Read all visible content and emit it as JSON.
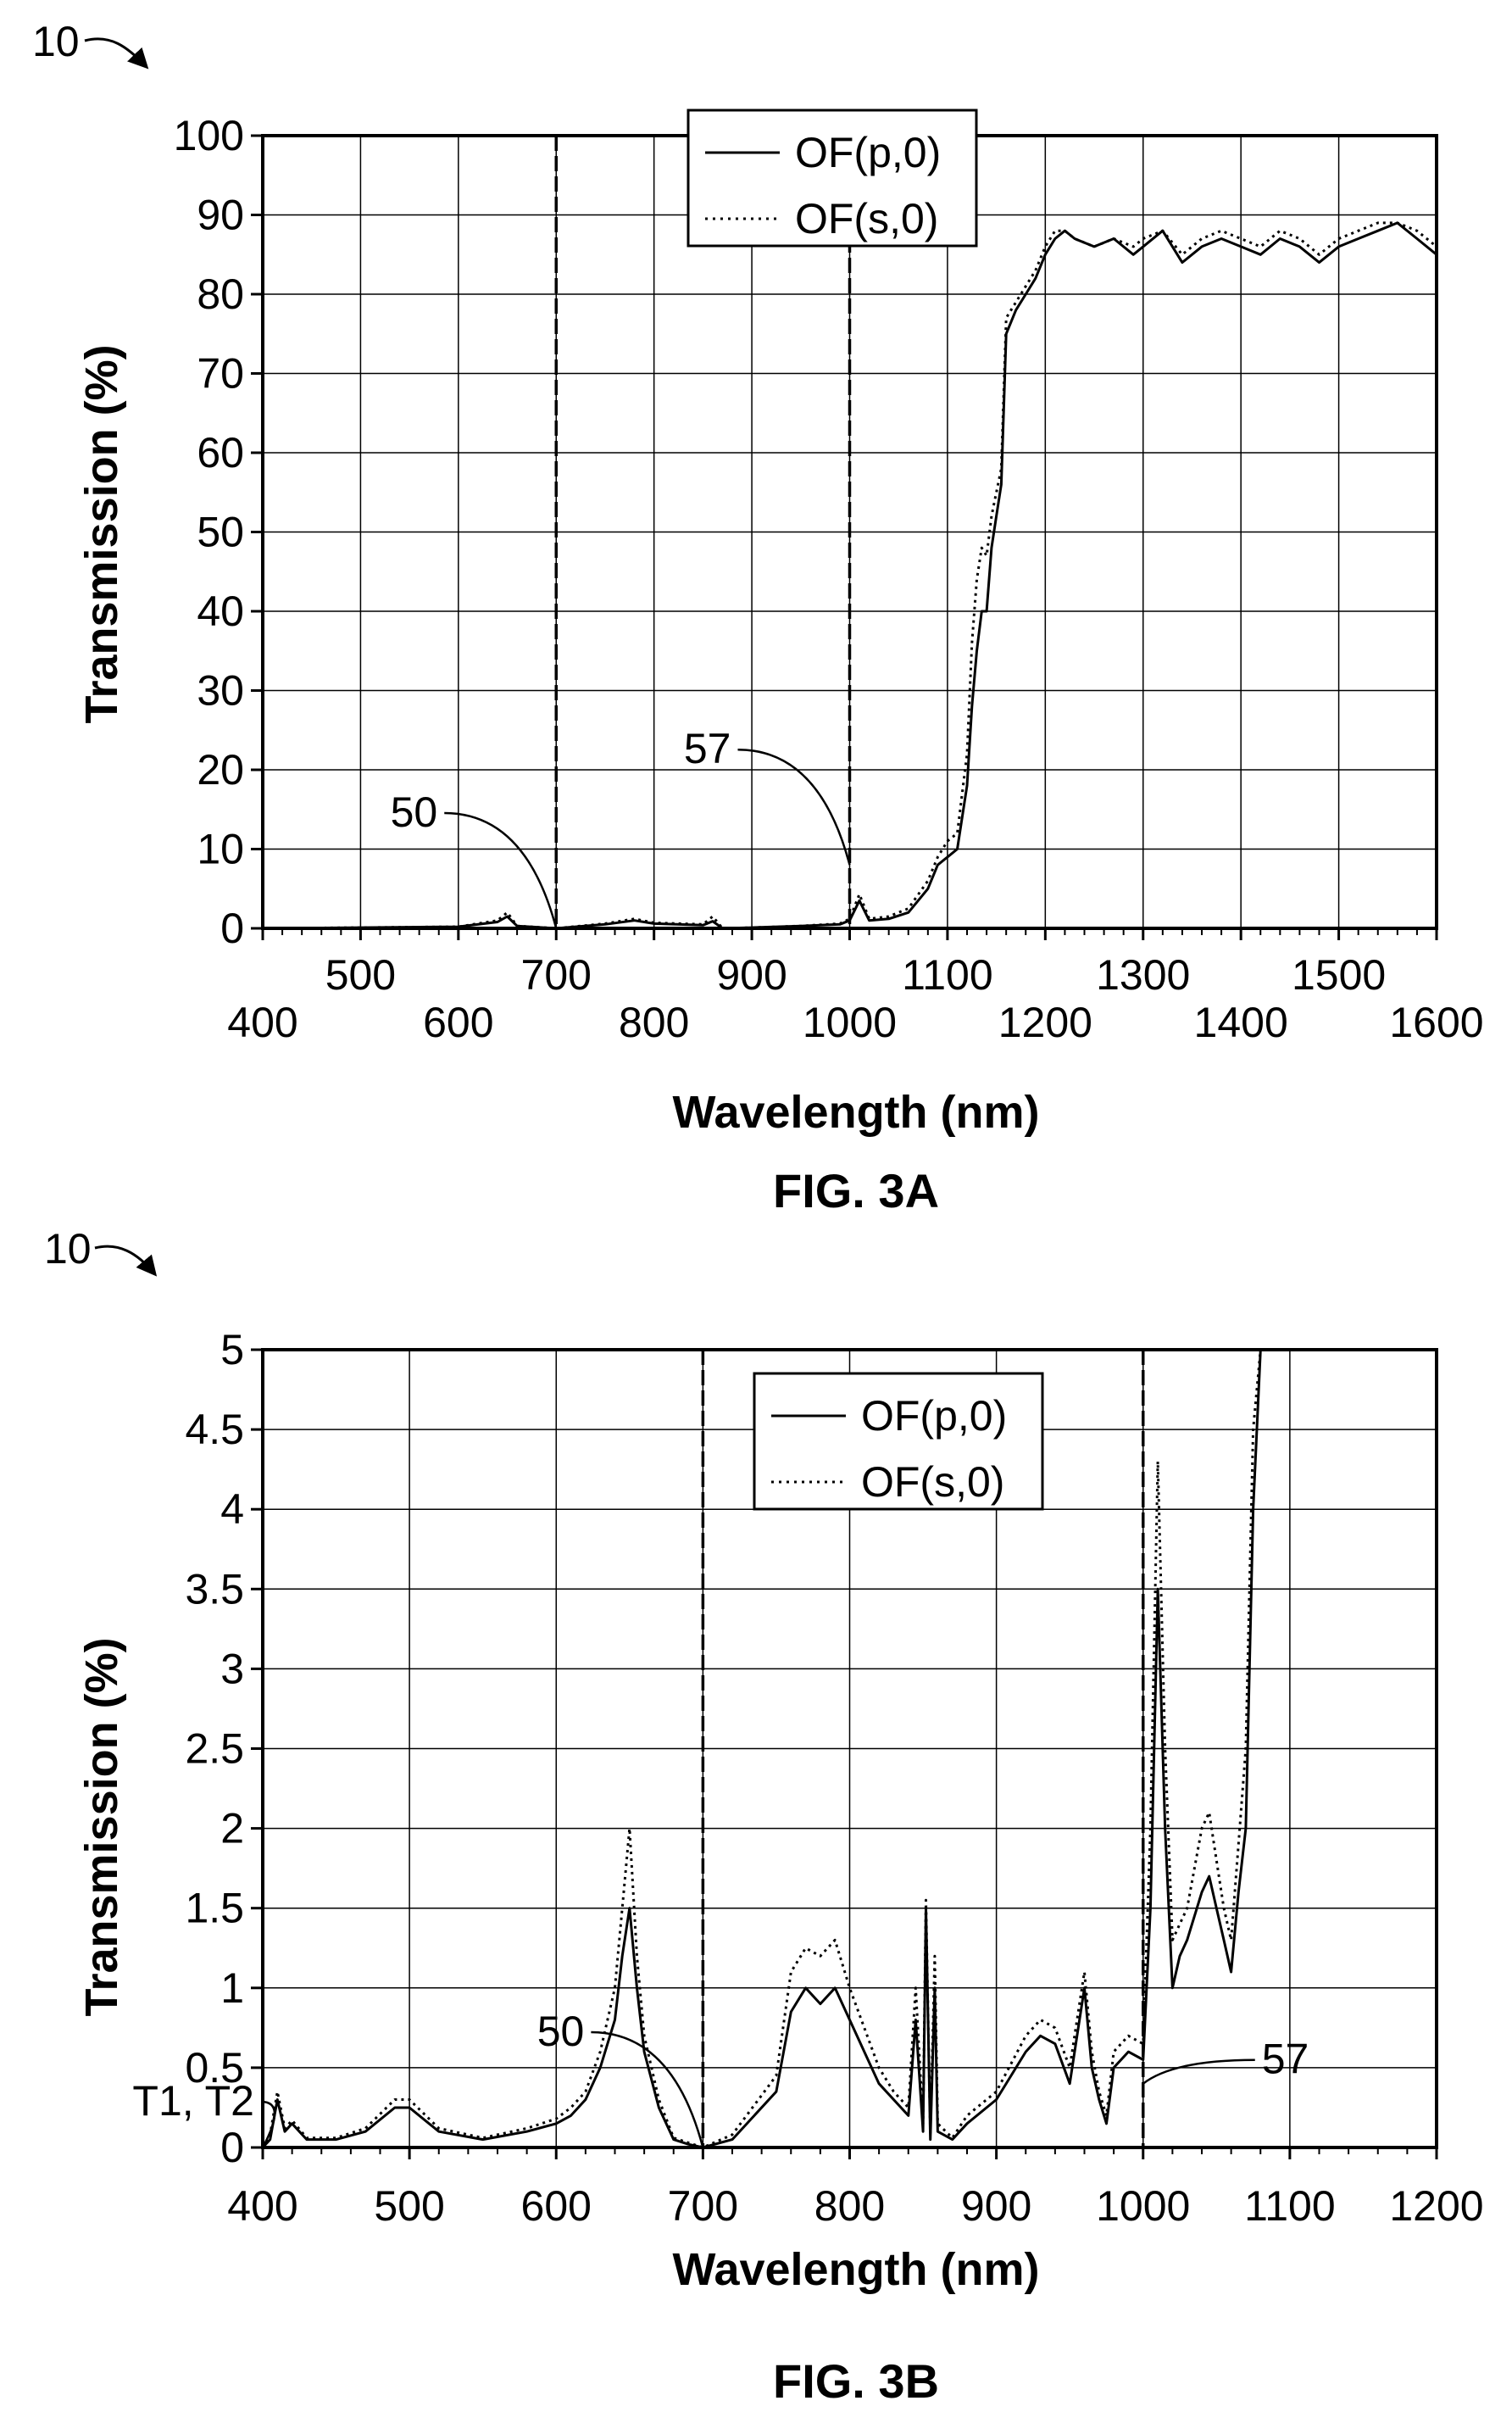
{
  "chart_data": [
    {
      "type": "line",
      "figure_label": "FIG. 3A",
      "reference_numeral": "10",
      "xlabel": "Wavelength (nm)",
      "ylabel": "Transmission (%)",
      "xlim": [
        400,
        1600
      ],
      "ylim": [
        0,
        100
      ],
      "x_ticks_low": [
        "400",
        "600",
        "800",
        "1000",
        "1200",
        "1400",
        "1600"
      ],
      "x_ticks_high": [
        "500",
        "700",
        "900",
        "1100",
        "1300",
        "1500"
      ],
      "y_ticks": [
        "0",
        "10",
        "20",
        "30",
        "40",
        "50",
        "60",
        "70",
        "80",
        "90",
        "100"
      ],
      "grid": true,
      "legend_position": "top-center",
      "vertical_markers": [
        700,
        1000
      ],
      "annotations": [
        {
          "label": "50",
          "x": 700,
          "y": 0
        },
        {
          "label": "57",
          "x": 1000,
          "y": 8
        }
      ],
      "series": [
        {
          "name": "OF(p,0)",
          "style": "solid",
          "x": [
            400,
            500,
            600,
            640,
            650,
            660,
            700,
            750,
            780,
            800,
            850,
            860,
            870,
            900,
            950,
            990,
            1000,
            1010,
            1020,
            1040,
            1060,
            1080,
            1090,
            1100,
            1110,
            1120,
            1125,
            1130,
            1135,
            1140,
            1145,
            1150,
            1155,
            1160,
            1170,
            1180,
            1190,
            1200,
            1210,
            1220,
            1230,
            1250,
            1270,
            1290,
            1300,
            1320,
            1340,
            1360,
            1380,
            1400,
            1420,
            1440,
            1460,
            1480,
            1500,
            1520,
            1540,
            1560,
            1580,
            1600
          ],
          "values": [
            0,
            0.1,
            0.2,
            0.8,
            1.5,
            0.3,
            0,
            0.5,
            1,
            0.6,
            0.4,
            0.9,
            0,
            0.1,
            0.3,
            0.5,
            1,
            3.5,
            1,
            1.2,
            2,
            5,
            8,
            9,
            10,
            18,
            28,
            35,
            40,
            40,
            48,
            52,
            56,
            75,
            78,
            80,
            82,
            85,
            87,
            88,
            87,
            86,
            87,
            85,
            86,
            88,
            84,
            86,
            87,
            86,
            85,
            87,
            86,
            84,
            86,
            87,
            88,
            89,
            87,
            85
          ]
        },
        {
          "name": "OF(s,0)",
          "style": "dotted",
          "x": [
            400,
            500,
            600,
            640,
            650,
            660,
            700,
            750,
            780,
            800,
            850,
            860,
            870,
            900,
            950,
            990,
            1000,
            1010,
            1020,
            1040,
            1060,
            1080,
            1090,
            1100,
            1110,
            1120,
            1125,
            1130,
            1135,
            1140,
            1145,
            1150,
            1155,
            1160,
            1170,
            1180,
            1190,
            1200,
            1210,
            1220,
            1230,
            1250,
            1270,
            1290,
            1300,
            1320,
            1340,
            1360,
            1380,
            1400,
            1420,
            1440,
            1460,
            1480,
            1500,
            1520,
            1540,
            1560,
            1580,
            1600
          ],
          "values": [
            0,
            0.1,
            0.2,
            1,
            2,
            0.3,
            0,
            0.6,
            1.2,
            0.7,
            0.5,
            1.5,
            0,
            0.1,
            0.3,
            0.6,
            1.2,
            4.3,
            1.2,
            1.5,
            2.5,
            6,
            9,
            11,
            12,
            22,
            36,
            44,
            48,
            47,
            52,
            55,
            58,
            77,
            79,
            81,
            83,
            86,
            88,
            88,
            87,
            86,
            87,
            86,
            87,
            88,
            85,
            87,
            88,
            87,
            86,
            88,
            87,
            85,
            87,
            88,
            89,
            89,
            88,
            86
          ]
        }
      ]
    },
    {
      "type": "line",
      "figure_label": "FIG. 3B",
      "reference_numeral": "10",
      "xlabel": "Wavelength (nm)",
      "ylabel": "Transmission (%)",
      "xlim": [
        400,
        1200
      ],
      "ylim": [
        0,
        5
      ],
      "x_ticks": [
        "400",
        "500",
        "600",
        "700",
        "800",
        "900",
        "1000",
        "1100",
        "1200"
      ],
      "y_ticks": [
        "0",
        "0.5",
        "1",
        "1.5",
        "2",
        "2.5",
        "3",
        "3.5",
        "4",
        "4.5",
        "5"
      ],
      "grid": true,
      "legend_position": "top-center",
      "vertical_markers": [
        700,
        1000
      ],
      "annotations": [
        {
          "label": "50",
          "x": 700,
          "y": 0
        },
        {
          "label": "57",
          "x": 1000,
          "y": 0.4
        },
        {
          "label": "T1, T2",
          "x": 400,
          "y": 0
        }
      ],
      "series": [
        {
          "name": "OF(p,0)",
          "style": "solid",
          "x": [
            400,
            405,
            410,
            415,
            420,
            430,
            450,
            470,
            490,
            500,
            520,
            550,
            580,
            600,
            610,
            620,
            630,
            640,
            645,
            650,
            655,
            660,
            670,
            680,
            690,
            700,
            720,
            750,
            760,
            770,
            780,
            790,
            800,
            810,
            820,
            830,
            840,
            845,
            850,
            852,
            855,
            858,
            860,
            870,
            880,
            900,
            920,
            930,
            940,
            950,
            955,
            960,
            965,
            970,
            975,
            980,
            990,
            1000,
            1005,
            1010,
            1015,
            1020,
            1025,
            1030,
            1040,
            1045,
            1050,
            1055,
            1060,
            1065,
            1070,
            1075,
            1080
          ],
          "values": [
            0,
            0.05,
            0.3,
            0.1,
            0.15,
            0.05,
            0.05,
            0.1,
            0.25,
            0.25,
            0.1,
            0.05,
            0.1,
            0.15,
            0.2,
            0.3,
            0.5,
            0.8,
            1.2,
            1.5,
            1.0,
            0.6,
            0.25,
            0.05,
            0.02,
            0,
            0.05,
            0.35,
            0.85,
            1.0,
            0.9,
            1.0,
            0.8,
            0.6,
            0.4,
            0.3,
            0.2,
            0.8,
            0.1,
            1.5,
            0.05,
            1.0,
            0.1,
            0.05,
            0.15,
            0.3,
            0.6,
            0.7,
            0.65,
            0.4,
            0.7,
            1.0,
            0.5,
            0.3,
            0.15,
            0.5,
            0.6,
            0.55,
            1.5,
            3.5,
            2.0,
            1.0,
            1.2,
            1.3,
            1.6,
            1.7,
            1.5,
            1.3,
            1.1,
            1.6,
            2.0,
            4.0,
            5.0
          ]
        },
        {
          "name": "OF(s,0)",
          "style": "dotted",
          "x": [
            400,
            405,
            410,
            415,
            420,
            430,
            450,
            470,
            490,
            500,
            520,
            550,
            580,
            600,
            610,
            620,
            630,
            640,
            645,
            650,
            655,
            660,
            670,
            680,
            690,
            700,
            720,
            750,
            760,
            770,
            780,
            790,
            800,
            810,
            820,
            830,
            840,
            845,
            850,
            852,
            855,
            858,
            860,
            870,
            880,
            900,
            920,
            930,
            940,
            950,
            955,
            960,
            965,
            970,
            975,
            980,
            990,
            1000,
            1005,
            1010,
            1015,
            1020,
            1025,
            1030,
            1040,
            1045,
            1050,
            1055,
            1060,
            1065,
            1070,
            1075,
            1080
          ],
          "values": [
            0,
            0.08,
            0.35,
            0.12,
            0.17,
            0.06,
            0.06,
            0.12,
            0.3,
            0.3,
            0.12,
            0.06,
            0.12,
            0.18,
            0.25,
            0.35,
            0.6,
            1.0,
            1.5,
            2.0,
            1.2,
            0.7,
            0.3,
            0.06,
            0.03,
            0,
            0.08,
            0.45,
            1.1,
            1.25,
            1.2,
            1.3,
            1.0,
            0.75,
            0.5,
            0.35,
            0.25,
            1.0,
            0.15,
            1.55,
            0.08,
            1.2,
            0.15,
            0.06,
            0.2,
            0.35,
            0.7,
            0.8,
            0.75,
            0.5,
            0.8,
            1.1,
            0.6,
            0.35,
            0.2,
            0.6,
            0.7,
            0.65,
            2.0,
            4.3,
            2.5,
            1.3,
            1.4,
            1.5,
            2.0,
            2.1,
            1.8,
            1.5,
            1.3,
            1.9,
            2.5,
            4.5,
            5.0
          ]
        }
      ]
    }
  ]
}
